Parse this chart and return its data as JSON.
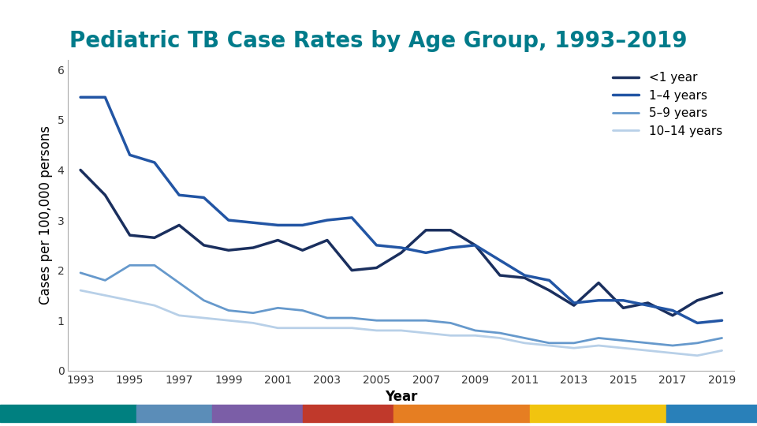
{
  "title": "Pediatric TB Case Rates by Age Group, 1993–2019",
  "xlabel": "Year",
  "ylabel": "Cases per 100,000 persons",
  "title_color": "#007b8a",
  "years": [
    1993,
    1994,
    1995,
    1996,
    1997,
    1998,
    1999,
    2000,
    2001,
    2002,
    2003,
    2004,
    2005,
    2006,
    2007,
    2008,
    2009,
    2010,
    2011,
    2012,
    2013,
    2014,
    2015,
    2016,
    2017,
    2018,
    2019
  ],
  "series": [
    {
      "label": "<1 year",
      "color": "#1a2f5e",
      "linewidth": 2.5,
      "values": [
        4.0,
        3.5,
        2.7,
        2.65,
        2.9,
        2.5,
        2.4,
        2.45,
        2.6,
        2.4,
        2.6,
        2.0,
        2.05,
        2.35,
        2.8,
        2.8,
        2.5,
        1.9,
        1.85,
        1.6,
        1.3,
        1.75,
        1.25,
        1.35,
        1.1,
        1.4,
        1.55
      ]
    },
    {
      "label": "1–4 years",
      "color": "#2255a4",
      "linewidth": 2.5,
      "values": [
        5.45,
        5.45,
        4.3,
        4.15,
        3.5,
        3.45,
        3.0,
        2.95,
        2.9,
        2.9,
        3.0,
        3.05,
        2.5,
        2.45,
        2.35,
        2.45,
        2.5,
        2.2,
        1.9,
        1.8,
        1.35,
        1.4,
        1.4,
        1.3,
        1.2,
        0.95,
        1.0
      ]
    },
    {
      "label": "5–9 years",
      "color": "#6699cc",
      "linewidth": 2.0,
      "values": [
        1.95,
        1.8,
        2.1,
        2.1,
        1.75,
        1.4,
        1.2,
        1.15,
        1.25,
        1.2,
        1.05,
        1.05,
        1.0,
        1.0,
        1.0,
        0.95,
        0.8,
        0.75,
        0.65,
        0.55,
        0.55,
        0.65,
        0.6,
        0.55,
        0.5,
        0.55,
        0.65
      ]
    },
    {
      "label": "10–14 years",
      "color": "#b8d0e8",
      "linewidth": 2.0,
      "values": [
        1.6,
        1.5,
        1.4,
        1.3,
        1.1,
        1.05,
        1.0,
        0.95,
        0.85,
        0.85,
        0.85,
        0.85,
        0.8,
        0.8,
        0.75,
        0.7,
        0.7,
        0.65,
        0.55,
        0.5,
        0.45,
        0.5,
        0.45,
        0.4,
        0.35,
        0.3,
        0.4
      ]
    }
  ],
  "ylim": [
    0,
    6.2
  ],
  "yticks": [
    0,
    1,
    2,
    3,
    4,
    5,
    6
  ],
  "xtick_years": [
    1993,
    1995,
    1997,
    1999,
    2001,
    2003,
    2005,
    2007,
    2009,
    2011,
    2013,
    2015,
    2017,
    2019
  ],
  "background_color": "#ffffff",
  "title_fontsize": 20,
  "axis_label_fontsize": 12,
  "tick_fontsize": 10,
  "legend_fontsize": 11,
  "footer_colors": [
    "#008080",
    "#5b8db8",
    "#7b5ea7",
    "#c0392b",
    "#e67e22",
    "#f1c40f",
    "#2980b9"
  ],
  "footer_widths": [
    0.18,
    0.1,
    0.12,
    0.12,
    0.18,
    0.18,
    0.12
  ]
}
